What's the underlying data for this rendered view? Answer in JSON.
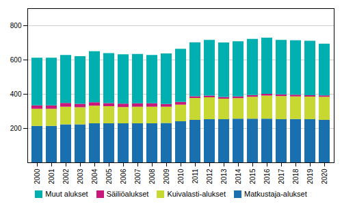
{
  "chart_data": {
    "type": "bar",
    "stacked": true,
    "categories": [
      2000,
      2001,
      2002,
      2003,
      2004,
      2005,
      2006,
      2007,
      2008,
      2009,
      2010,
      2011,
      2012,
      2013,
      2014,
      2015,
      2016,
      2017,
      2018,
      2019,
      2020
    ],
    "series": [
      {
        "name": "Matkustaja-alukset",
        "color": "#1a6faf",
        "values": [
          213,
          213,
          222,
          222,
          228,
          228,
          228,
          228,
          228,
          230,
          240,
          248,
          252,
          252,
          255,
          255,
          255,
          252,
          253,
          252,
          248
        ]
      },
      {
        "name": "Kuivalasti-alukset",
        "color": "#c8d832",
        "values": [
          100,
          100,
          103,
          100,
          103,
          100,
          95,
          97,
          97,
          95,
          97,
          128,
          128,
          120,
          120,
          128,
          135,
          135,
          132,
          132,
          135
        ]
      },
      {
        "name": "Säiliöalukset",
        "color": "#c8187a",
        "values": [
          20,
          20,
          22,
          20,
          20,
          18,
          20,
          20,
          20,
          16,
          16,
          10,
          10,
          10,
          10,
          10,
          10,
          10,
          10,
          8,
          8
        ]
      },
      {
        "name": "Muut alukset",
        "color": "#00b0b0",
        "values": [
          278,
          278,
          280,
          278,
          298,
          292,
          288,
          288,
          282,
          295,
          310,
          315,
          325,
          318,
          322,
          328,
          328,
          318,
          318,
          318,
          302
        ]
      }
    ],
    "ylim": [
      0,
      900
    ],
    "yticks": [
      200,
      400,
      600,
      800
    ],
    "grid": true,
    "legend": "bottom"
  }
}
